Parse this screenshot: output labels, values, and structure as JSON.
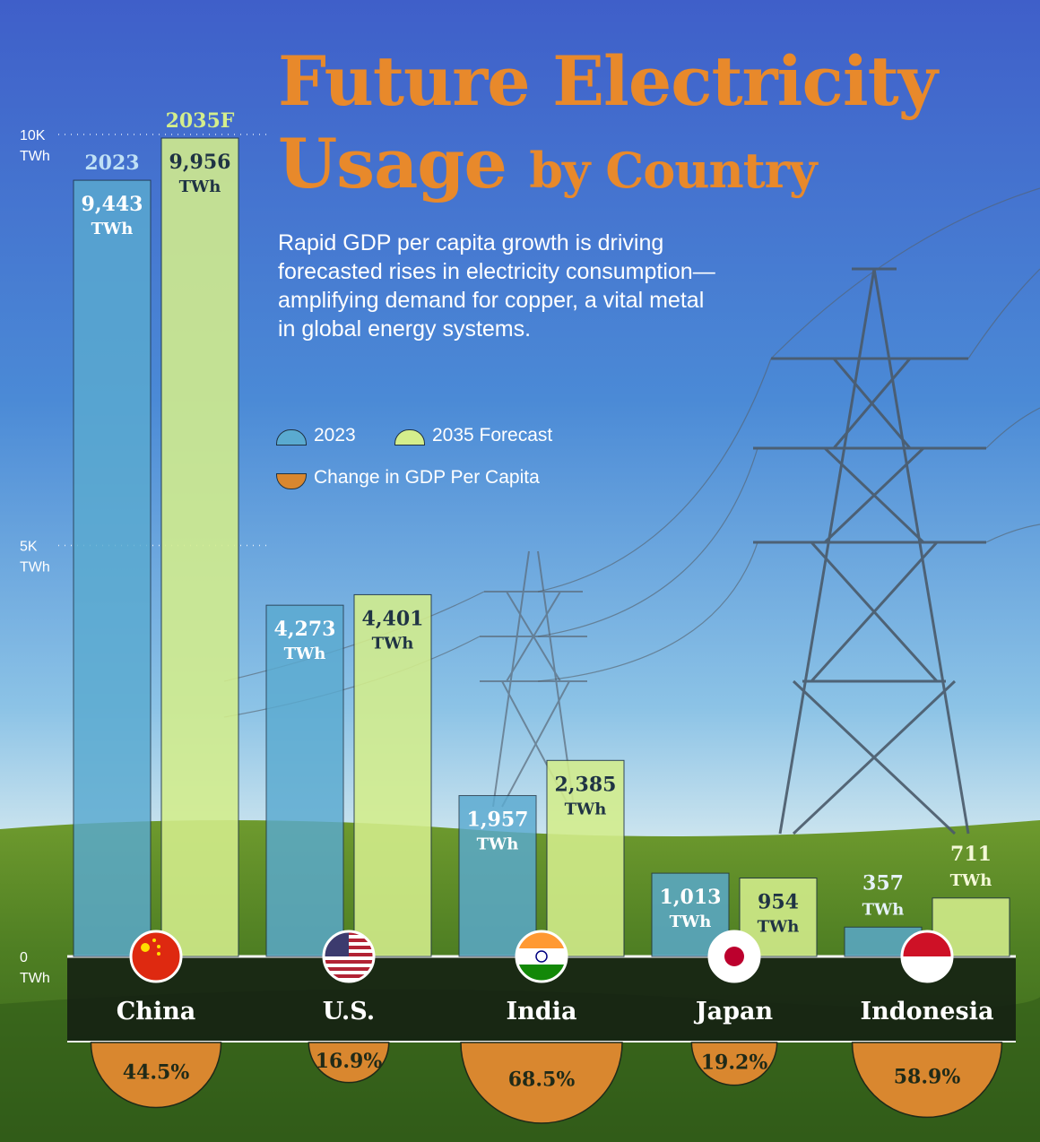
{
  "title": {
    "line1": "Future Electricity",
    "line2_big": "Usage",
    "line2_small": "by Country"
  },
  "subtitle": "Rapid GDP per capita growth is driving forecasted rises in electricity consumption—amplifying demand for copper, a vital metal in global energy systems.",
  "legend": {
    "items": [
      {
        "label": "2023",
        "color": "#5aaad0"
      },
      {
        "label": "2035 Forecast",
        "color": "#d4ee8c"
      },
      {
        "label": "Change in GDP Per Capita",
        "color": "#d9872f"
      }
    ]
  },
  "colors": {
    "title": "#e8892b",
    "bar_2023": "#5aaad0",
    "bar_2035": "#d4ee8c",
    "gdp": "#d9872f",
    "label_dark": "#1f3344",
    "label_light": "#e6f2fa"
  },
  "chart_data": {
    "type": "bar",
    "categories": [
      "China",
      "U.S.",
      "India",
      "Japan",
      "Indonesia"
    ],
    "series": [
      {
        "name": "2023",
        "header": "2023",
        "values": [
          9443,
          4273,
          1957,
          1013,
          357
        ],
        "labels": [
          "9,443",
          "4,273",
          "1,957",
          "1,013",
          "357"
        ]
      },
      {
        "name": "2035 Forecast",
        "header": "2035F",
        "values": [
          9956,
          4401,
          2385,
          954,
          711
        ],
        "labels": [
          "9,956",
          "4,401",
          "2,385",
          "954",
          "711"
        ]
      }
    ],
    "unit": "TWh",
    "y_ticks": [
      {
        "value": 10000,
        "label": "10K",
        "unit": "TWh"
      },
      {
        "value": 5000,
        "label": "5K",
        "unit": "TWh"
      },
      {
        "value": 0,
        "label": "0",
        "unit": "TWh"
      }
    ],
    "ylim": [
      0,
      10000
    ],
    "gdp_per_capita_change": {
      "values": [
        44.5,
        16.9,
        68.5,
        19.2,
        58.9
      ],
      "labels": [
        "44.5%",
        "16.9%",
        "68.5%",
        "19.2%",
        "58.9%"
      ]
    },
    "flags": [
      "china-flag-icon",
      "us-flag-icon",
      "india-flag-icon",
      "japan-flag-icon",
      "indonesia-flag-icon"
    ]
  }
}
